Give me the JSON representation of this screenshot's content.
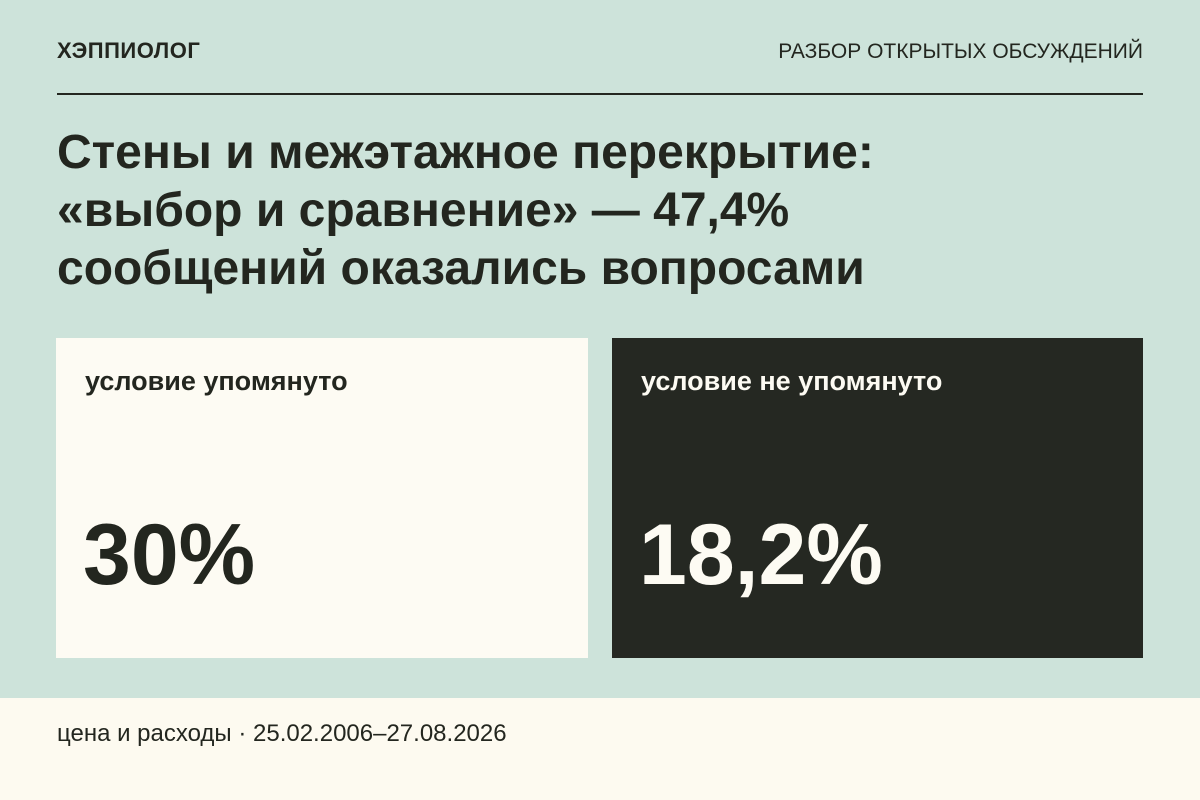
{
  "header": {
    "brand": "ХЭППИОЛОГ",
    "section": "РАЗБОР ОТКРЫТЫХ ОБСУЖДЕНИЙ"
  },
  "title": [
    "Стены и межэтажное перекрытие:",
    "«выбор и сравнение» — 47,4%",
    "сообщений оказались вопросами"
  ],
  "cards": [
    {
      "label": "условие упомянуто",
      "value": "30%"
    },
    {
      "label": "условие не упомянуто",
      "value": "18,2%"
    }
  ],
  "footer": {
    "text": "цена и расходы · 25.02.2006–27.08.2026"
  }
}
